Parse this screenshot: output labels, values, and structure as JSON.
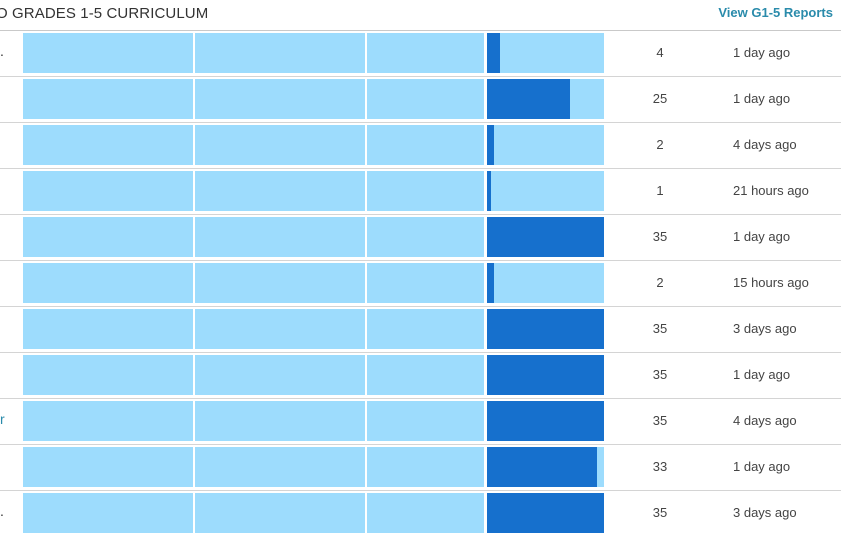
{
  "header": {
    "section_title": "O GRADES 1-5 CURRICULUM",
    "reports_link": "View G1-5 Reports"
  },
  "colors": {
    "bar_background": "#9ddcfd",
    "bar_progress": "#1670cd",
    "link": "#2a8bab"
  },
  "rows": [
    {
      "truncated": ".",
      "count": "4",
      "progress": 0.11,
      "last_active": "1 day ago"
    },
    {
      "truncated": "",
      "count": "25",
      "progress": 0.71,
      "last_active": "1 day ago"
    },
    {
      "truncated": "",
      "count": "2",
      "progress": 0.06,
      "last_active": "4 days ago"
    },
    {
      "truncated": "",
      "count": "1",
      "progress": 0.03,
      "last_active": "21 hours ago"
    },
    {
      "truncated": "",
      "count": "35",
      "progress": 1.0,
      "last_active": "1 day ago"
    },
    {
      "truncated": "",
      "count": "2",
      "progress": 0.06,
      "last_active": "15 hours ago"
    },
    {
      "truncated": "",
      "count": "35",
      "progress": 1.0,
      "last_active": "3 days ago"
    },
    {
      "truncated": "",
      "count": "35",
      "progress": 1.0,
      "last_active": "1 day ago"
    },
    {
      "truncated": "r",
      "count": "35",
      "progress": 1.0,
      "last_active": "4 days ago"
    },
    {
      "truncated": "",
      "count": "33",
      "progress": 0.94,
      "last_active": "1 day ago"
    },
    {
      "truncated": ".",
      "count": "35",
      "progress": 1.0,
      "last_active": "3 days ago"
    }
  ]
}
